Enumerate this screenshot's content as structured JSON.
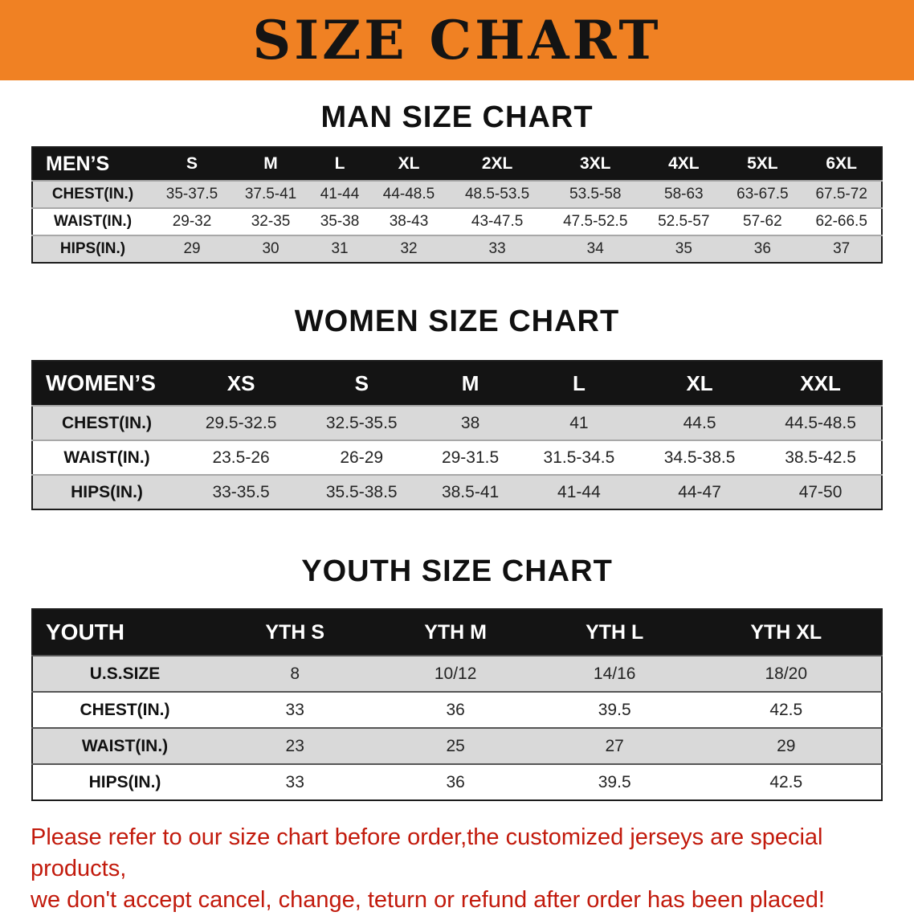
{
  "banner": {
    "title": "SIZE CHART",
    "bg_color": "#f08123",
    "text_color": "#141414"
  },
  "sections": {
    "men": {
      "heading": "MAN SIZE CHART"
    },
    "women": {
      "heading": "WOMEN SIZE CHART"
    },
    "youth": {
      "heading": "YOUTH SIZE CHART"
    }
  },
  "men_table": {
    "header": [
      "MEN’S",
      "S",
      "M",
      "L",
      "XL",
      "2XL",
      "3XL",
      "4XL",
      "5XL",
      "6XL"
    ],
    "rows": [
      [
        "CHEST(IN.)",
        "35-37.5",
        "37.5-41",
        "41-44",
        "44-48.5",
        "48.5-53.5",
        "53.5-58",
        "58-63",
        "63-67.5",
        "67.5-72"
      ],
      [
        "WAIST(IN.)",
        "29-32",
        "32-35",
        "35-38",
        "38-43",
        "43-47.5",
        "47.5-52.5",
        "52.5-57",
        "57-62",
        "62-66.5"
      ],
      [
        "HIPS(IN.)",
        "29",
        "30",
        "31",
        "32",
        "33",
        "34",
        "35",
        "36",
        "37"
      ]
    ]
  },
  "women_table": {
    "header": [
      "WOMEN’S",
      "XS",
      "S",
      "M",
      "L",
      "XL",
      "XXL"
    ],
    "rows": [
      [
        "CHEST(IN.)",
        "29.5-32.5",
        "32.5-35.5",
        "38",
        "41",
        "44.5",
        "44.5-48.5"
      ],
      [
        "WAIST(IN.)",
        "23.5-26",
        "26-29",
        "29-31.5",
        "31.5-34.5",
        "34.5-38.5",
        "38.5-42.5"
      ],
      [
        "HIPS(IN.)",
        "33-35.5",
        "35.5-38.5",
        "38.5-41",
        "41-44",
        "44-47",
        "47-50"
      ]
    ]
  },
  "youth_table": {
    "header": [
      "YOUTH",
      "YTH S",
      "YTH M",
      "YTH L",
      "YTH XL"
    ],
    "rows": [
      [
        "U.S.SIZE",
        "8",
        "10/12",
        "14/16",
        "18/20"
      ],
      [
        "CHEST(IN.)",
        "33",
        "36",
        "39.5",
        "42.5"
      ],
      [
        "WAIST(IN.)",
        "23",
        "25",
        "27",
        "29"
      ],
      [
        "HIPS(IN.)",
        "33",
        "36",
        "39.5",
        "42.5"
      ]
    ]
  },
  "disclaimer": {
    "line1": "Please refer to our size chart before order,the customized jerseys are special products,",
    "line2": "we don't accept cancel, change, teturn or refund after order has been placed!",
    "color": "#c21a0c"
  }
}
